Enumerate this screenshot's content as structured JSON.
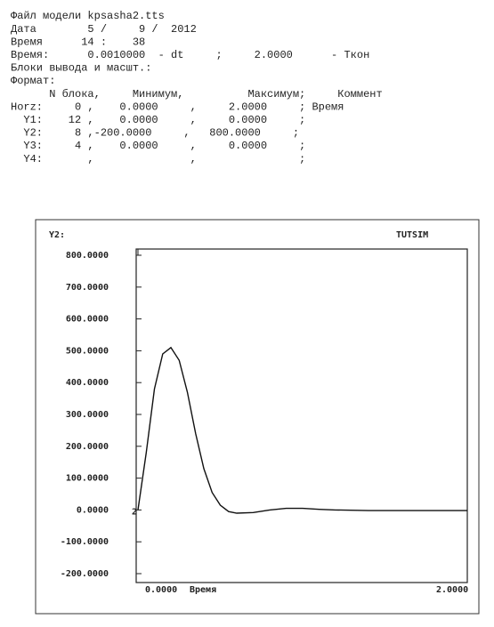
{
  "header": {
    "lines": [
      "Файл модели kpsasha2.tts",
      "Дата        5 /     9 /  2012",
      "Время      14 :    38",
      "Время:      0.0010000  - dt     ;     2.0000      - Ткон",
      "Блоки вывода и масшт.:",
      "Формат:",
      "      N блока,     Минимум,          Максимум;     Коммент",
      "Horz:     0 ,    0.0000     ,     2.0000     ; Время",
      "  Y1:    12 ,    0.0000     ,     0.0000     ;",
      "  Y2:     8 ,-200.0000     ,   800.0000     ;",
      "  Y3:     4 ,    0.0000     ,     0.0000     ;",
      "  Y4:       ,               ,                ;"
    ]
  },
  "chart_data": {
    "type": "line",
    "y_label": "Y2:",
    "brand": "TUTSIM",
    "series_marker": "2",
    "x_label": "Время",
    "x": [
      0,
      0.05,
      0.1,
      0.15,
      0.2,
      0.25,
      0.3,
      0.35,
      0.4,
      0.45,
      0.5,
      0.55,
      0.6,
      0.7,
      0.8,
      0.9,
      1.0,
      1.1,
      1.2,
      1.4,
      1.6,
      1.8,
      2.0
    ],
    "series": [
      {
        "name": "Y2",
        "color": "#111111",
        "values": [
          0,
          180,
          380,
          490,
          510,
          470,
          370,
          240,
          130,
          55,
          15,
          -5,
          -10,
          -8,
          0,
          5,
          5,
          2,
          0,
          -2,
          -2,
          -2,
          -2
        ]
      }
    ],
    "xlim": [
      0,
      2
    ],
    "xticks": [
      {
        "value": 0,
        "label": "0.0000"
      },
      {
        "value": 2,
        "label": "2.0000"
      }
    ],
    "ylim": [
      -200,
      800
    ],
    "yticks": [
      {
        "value": 800,
        "label": "800.0000"
      },
      {
        "value": 700,
        "label": "700.0000"
      },
      {
        "value": 600,
        "label": "600.0000"
      },
      {
        "value": 500,
        "label": "500.0000"
      },
      {
        "value": 400,
        "label": "400.0000"
      },
      {
        "value": 300,
        "label": "300.0000"
      },
      {
        "value": 200,
        "label": "200.0000"
      },
      {
        "value": 100,
        "label": "100.0000"
      },
      {
        "value": 0,
        "label": "0.0000"
      },
      {
        "value": -100,
        "label": "-100.0000"
      },
      {
        "value": -200,
        "label": "-200.0000"
      }
    ]
  }
}
